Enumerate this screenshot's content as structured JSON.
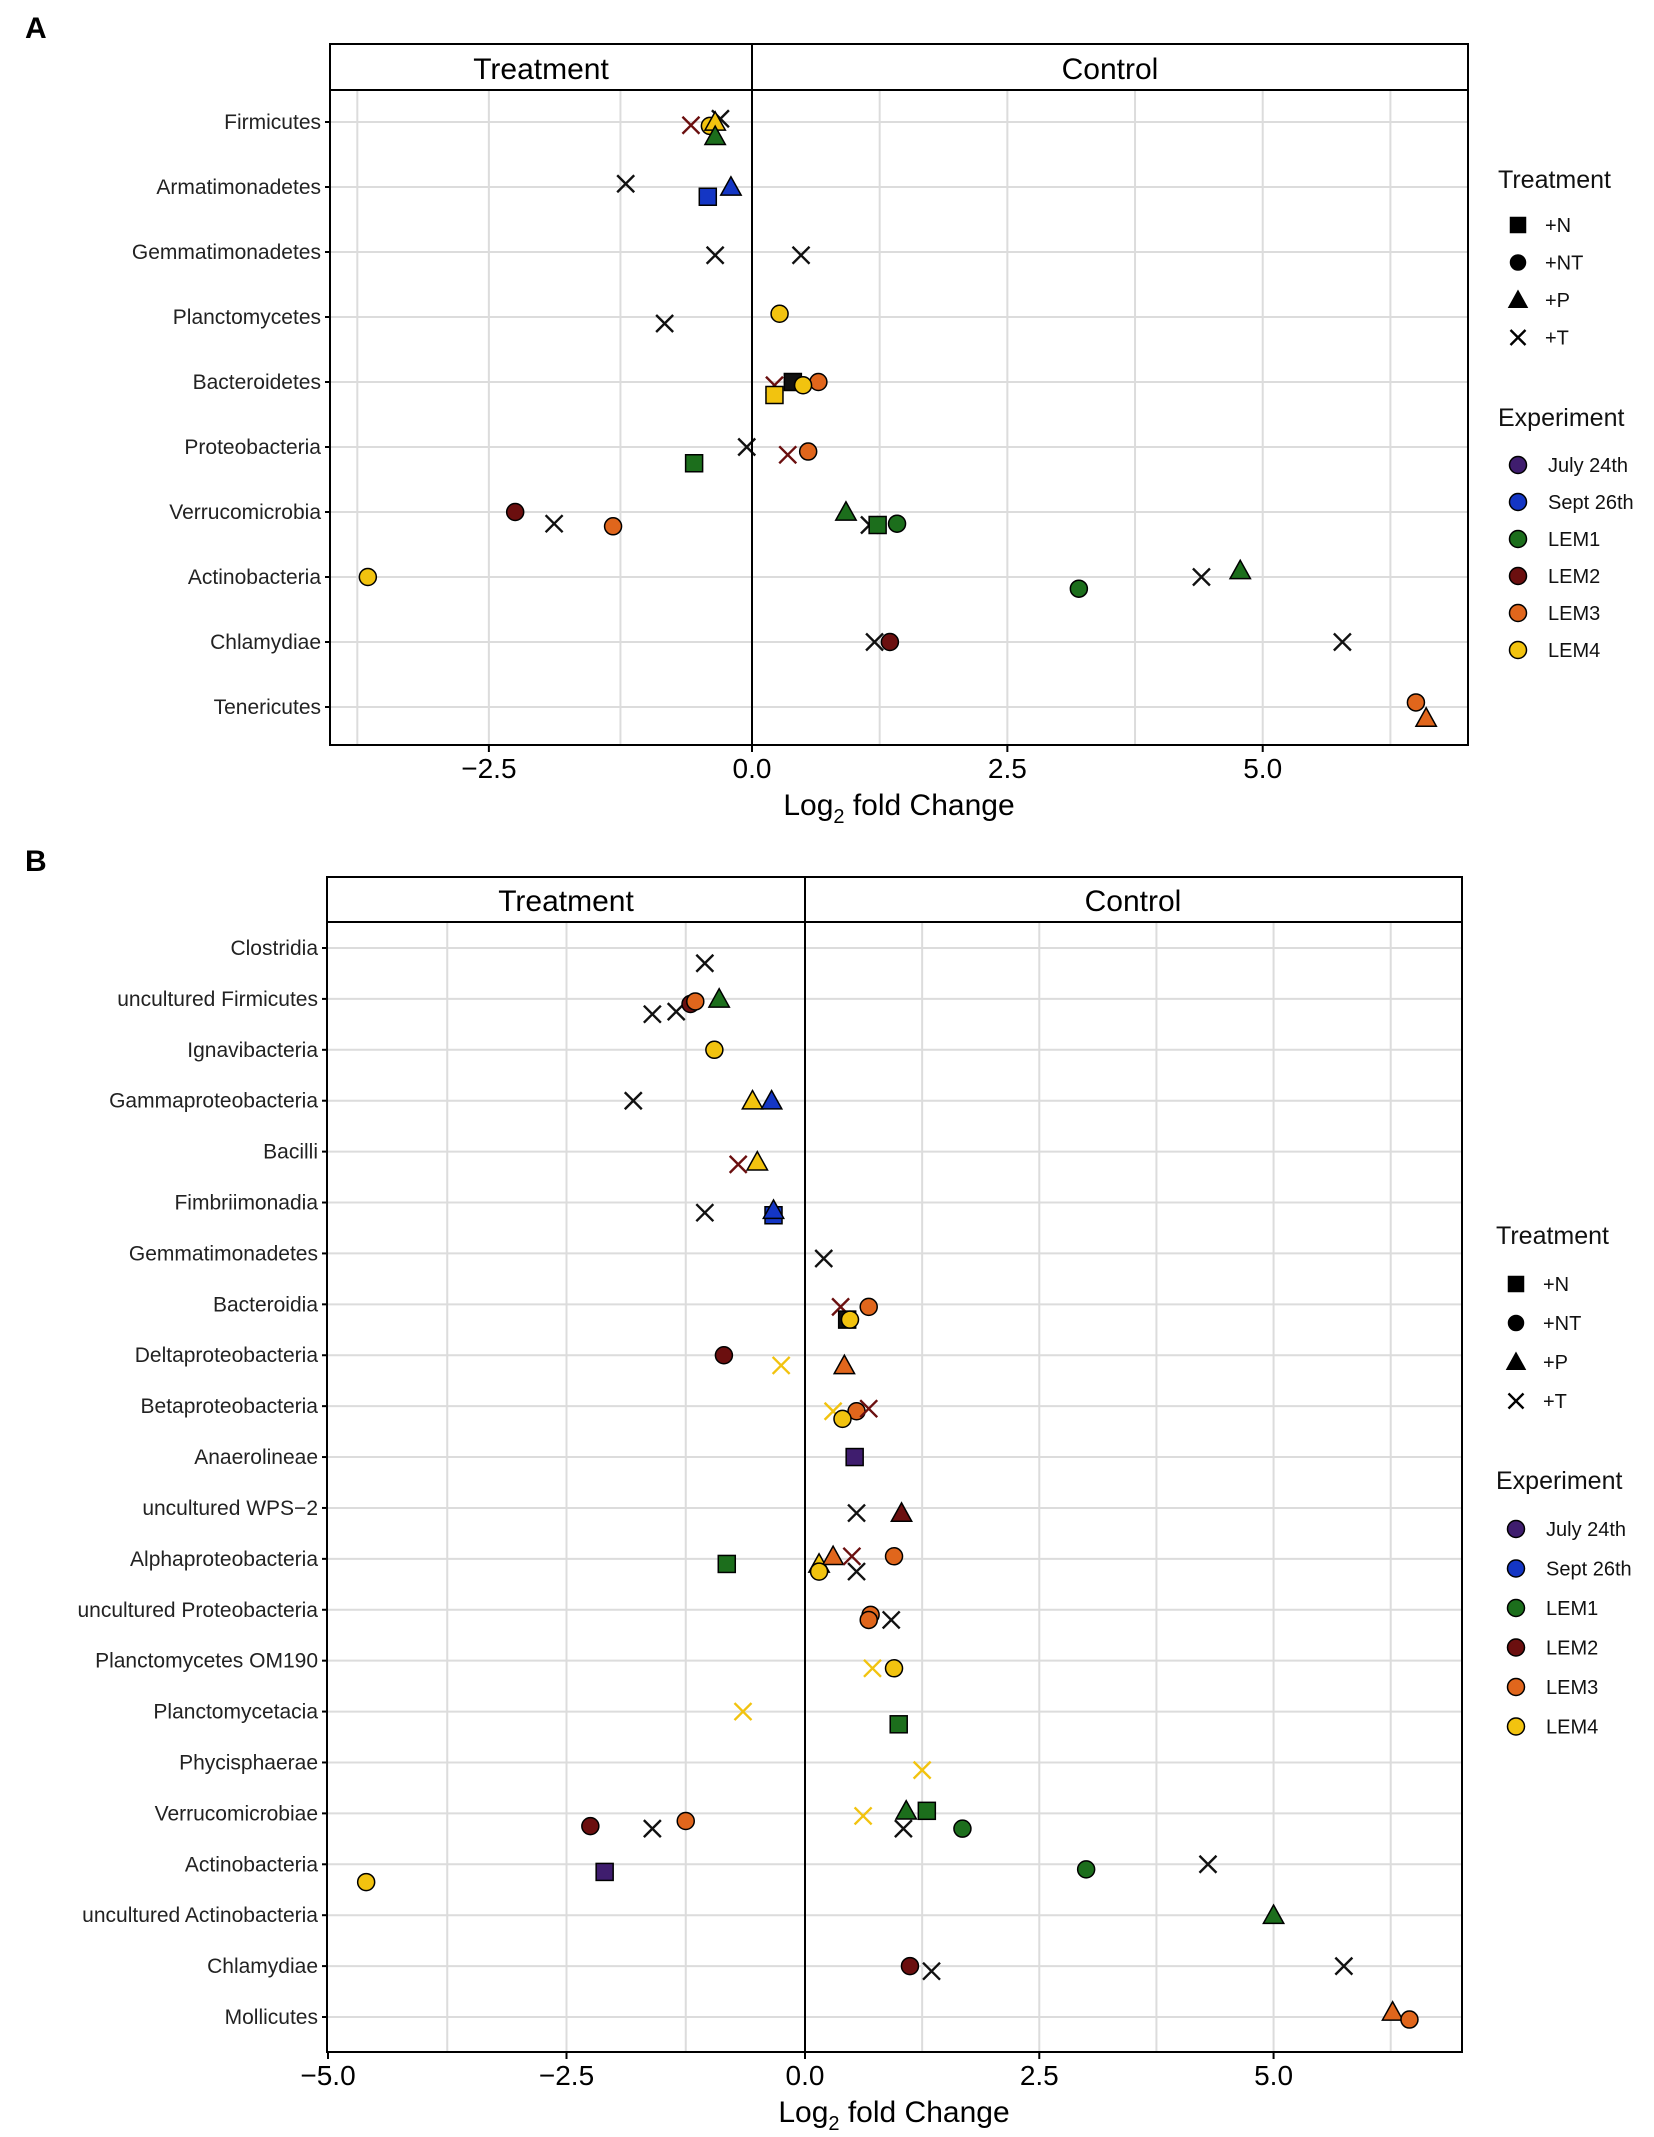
{
  "x_label_prefix": "Log",
  "x_label_sub": "2",
  "x_label_suffix": " fold Change",
  "legend": {
    "treatment_title": "Treatment",
    "treatments": [
      {
        "label": "+N",
        "shape": "square"
      },
      {
        "label": "+NT",
        "shape": "circle"
      },
      {
        "label": "+P",
        "shape": "triangle"
      },
      {
        "label": "+T",
        "shape": "cross"
      }
    ],
    "experiment_title": "Experiment",
    "experiments": [
      {
        "label": "July 24th",
        "color": "#3f1d6e"
      },
      {
        "label": "Sept 26th",
        "color": "#1436c4"
      },
      {
        "label": "LEM1",
        "color": "#1c6e1c"
      },
      {
        "label": "LEM2",
        "color": "#6b0f0f"
      },
      {
        "label": "LEM3",
        "color": "#e0661c"
      },
      {
        "label": "LEM4",
        "color": "#f2c30f"
      }
    ]
  },
  "chart_data": [
    {
      "panel_label": "A",
      "type": "scatter",
      "facets": [
        "Treatment",
        "Control"
      ],
      "xlim_treatment": [
        -4.0,
        0.0
      ],
      "xlim_control": [
        0.0,
        7.0
      ],
      "ticks": [
        "−2.5",
        "0.0",
        "2.5",
        "5.0"
      ],
      "tick_values": [
        -2.5,
        0.0,
        2.5,
        5.0
      ],
      "categories": [
        "Firmicutes",
        "Armatimonadetes",
        "Gemmatimonadetes",
        "Planctomycetes",
        "Bacteroidetes",
        "Proteobacteria",
        "Verrucomicrobia",
        "Actinobacteria",
        "Chlamydiae",
        "Tenericutes"
      ],
      "points": [
        {
          "cat": 0,
          "side": "T",
          "x": -0.3,
          "shape": "cross",
          "exp": "black",
          "dy": -0.05
        },
        {
          "cat": 0,
          "side": "T",
          "x": -0.58,
          "shape": "cross",
          "exp": "LEM2",
          "dy": 0.05
        },
        {
          "cat": 0,
          "side": "T",
          "x": -0.4,
          "shape": "circle",
          "exp": "LEM4",
          "dy": 0.06
        },
        {
          "cat": 0,
          "side": "T",
          "x": -0.35,
          "shape": "triangle",
          "exp": "LEM4",
          "dy": 0.0
        },
        {
          "cat": 0,
          "side": "T",
          "x": -0.35,
          "shape": "triangle",
          "exp": "LEM1",
          "dy": 0.22
        },
        {
          "cat": 1,
          "side": "T",
          "x": -1.2,
          "shape": "cross",
          "exp": "black",
          "dy": -0.05
        },
        {
          "cat": 1,
          "side": "T",
          "x": -0.42,
          "shape": "square",
          "exp": "Sept 26th",
          "dy": 0.15
        },
        {
          "cat": 1,
          "side": "T",
          "x": -0.2,
          "shape": "triangle",
          "exp": "Sept 26th",
          "dy": 0.0
        },
        {
          "cat": 2,
          "side": "T",
          "x": -0.35,
          "shape": "cross",
          "exp": "black",
          "dy": 0.05
        },
        {
          "cat": 2,
          "side": "C",
          "x": 0.48,
          "shape": "cross",
          "exp": "black",
          "dy": 0.05
        },
        {
          "cat": 3,
          "side": "T",
          "x": -0.83,
          "shape": "cross",
          "exp": "black",
          "dy": 0.1
        },
        {
          "cat": 3,
          "side": "C",
          "x": 0.27,
          "shape": "circle",
          "exp": "LEM4",
          "dy": -0.05
        },
        {
          "cat": 4,
          "side": "C",
          "x": 0.4,
          "shape": "square",
          "exp": "black",
          "dy": 0.0
        },
        {
          "cat": 4,
          "side": "C",
          "x": 0.22,
          "shape": "cross",
          "exp": "LEM2",
          "dy": 0.05
        },
        {
          "cat": 4,
          "side": "C",
          "x": 0.65,
          "shape": "circle",
          "exp": "LEM3",
          "dy": 0.0
        },
        {
          "cat": 4,
          "side": "C",
          "x": 0.5,
          "shape": "circle",
          "exp": "LEM4",
          "dy": 0.05
        },
        {
          "cat": 4,
          "side": "C",
          "x": 0.22,
          "shape": "square",
          "exp": "LEM4",
          "dy": 0.2
        },
        {
          "cat": 5,
          "side": "T",
          "x": -0.05,
          "shape": "cross",
          "exp": "black",
          "dy": 0.0
        },
        {
          "cat": 5,
          "side": "T",
          "x": -0.55,
          "shape": "square",
          "exp": "LEM1",
          "dy": 0.25
        },
        {
          "cat": 5,
          "side": "C",
          "x": 0.35,
          "shape": "cross",
          "exp": "LEM2",
          "dy": 0.12
        },
        {
          "cat": 5,
          "side": "C",
          "x": 0.55,
          "shape": "circle",
          "exp": "LEM3",
          "dy": 0.07
        },
        {
          "cat": 6,
          "side": "T",
          "x": -2.25,
          "shape": "circle",
          "exp": "LEM2",
          "dy": 0.0
        },
        {
          "cat": 6,
          "side": "T",
          "x": -1.88,
          "shape": "cross",
          "exp": "black",
          "dy": 0.18
        },
        {
          "cat": 6,
          "side": "T",
          "x": -1.32,
          "shape": "circle",
          "exp": "LEM3",
          "dy": 0.22
        },
        {
          "cat": 6,
          "side": "C",
          "x": 0.92,
          "shape": "triangle",
          "exp": "LEM1",
          "dy": 0.0
        },
        {
          "cat": 6,
          "side": "C",
          "x": 1.15,
          "shape": "cross",
          "exp": "black",
          "dy": 0.2
        },
        {
          "cat": 6,
          "side": "C",
          "x": 1.23,
          "shape": "square",
          "exp": "LEM1",
          "dy": 0.2
        },
        {
          "cat": 6,
          "side": "C",
          "x": 1.42,
          "shape": "circle",
          "exp": "LEM1",
          "dy": 0.18
        },
        {
          "cat": 7,
          "side": "T",
          "x": -3.65,
          "shape": "circle",
          "exp": "LEM4",
          "dy": 0.0
        },
        {
          "cat": 7,
          "side": "C",
          "x": 3.2,
          "shape": "circle",
          "exp": "LEM1",
          "dy": 0.18
        },
        {
          "cat": 7,
          "side": "C",
          "x": 4.4,
          "shape": "cross",
          "exp": "black",
          "dy": 0.0
        },
        {
          "cat": 7,
          "side": "C",
          "x": 4.78,
          "shape": "triangle",
          "exp": "LEM1",
          "dy": -0.1
        },
        {
          "cat": 8,
          "side": "C",
          "x": 1.2,
          "shape": "cross",
          "exp": "black",
          "dy": 0.0
        },
        {
          "cat": 8,
          "side": "C",
          "x": 1.35,
          "shape": "circle",
          "exp": "LEM2",
          "dy": 0.0
        },
        {
          "cat": 8,
          "side": "C",
          "x": 5.78,
          "shape": "cross",
          "exp": "black",
          "dy": 0.0
        },
        {
          "cat": 9,
          "side": "C",
          "x": 6.5,
          "shape": "circle",
          "exp": "LEM3",
          "dy": -0.07
        },
        {
          "cat": 9,
          "side": "C",
          "x": 6.6,
          "shape": "triangle",
          "exp": "LEM3",
          "dy": 0.17
        }
      ]
    },
    {
      "panel_label": "B",
      "type": "scatter",
      "facets": [
        "Treatment",
        "Control"
      ],
      "xlim_treatment": [
        -5.0,
        0.0
      ],
      "xlim_control": [
        0.0,
        7.0
      ],
      "ticks": [
        "−5.0",
        "−2.5",
        "0.0",
        "2.5",
        "5.0"
      ],
      "tick_values": [
        -5.0,
        -2.5,
        0.0,
        2.5,
        5.0
      ],
      "categories": [
        "Clostridia",
        "uncultured Firmicutes",
        "Ignavibacteria",
        "Gammaproteobacteria",
        "Bacilli",
        "Fimbriimonadia",
        "Gemmatimonadetes",
        "Bacteroidia",
        "Deltaproteobacteria",
        "Betaproteobacteria",
        "Anaerolineae",
        "uncultured WPS−2",
        "Alphaproteobacteria",
        "uncultured Proteobacteria",
        "Planctomycetes OM190",
        "Planctomycetacia",
        "Phycisphaerae",
        "Verrucomicrobiae",
        "Actinobacteria",
        "uncultured Actinobacteria",
        "Chlamydiae",
        "Mollicutes"
      ],
      "points": [
        {
          "cat": 0,
          "side": "T",
          "x": -1.05,
          "shape": "cross",
          "exp": "black",
          "dy": 0.3
        },
        {
          "cat": 1,
          "side": "T",
          "x": -1.6,
          "shape": "cross",
          "exp": "black",
          "dy": 0.3
        },
        {
          "cat": 1,
          "side": "T",
          "x": -1.35,
          "shape": "cross",
          "exp": "black",
          "dy": 0.25
        },
        {
          "cat": 1,
          "side": "T",
          "x": -1.2,
          "shape": "circle",
          "exp": "LEM2",
          "dy": 0.1
        },
        {
          "cat": 1,
          "side": "T",
          "x": -1.15,
          "shape": "circle",
          "exp": "LEM3",
          "dy": 0.05
        },
        {
          "cat": 1,
          "side": "T",
          "x": -0.9,
          "shape": "triangle",
          "exp": "LEM1",
          "dy": 0.0
        },
        {
          "cat": 2,
          "side": "T",
          "x": -0.95,
          "shape": "circle",
          "exp": "LEM4",
          "dy": 0.0
        },
        {
          "cat": 3,
          "side": "T",
          "x": -1.8,
          "shape": "cross",
          "exp": "black",
          "dy": 0.0
        },
        {
          "cat": 3,
          "side": "T",
          "x": -0.55,
          "shape": "triangle",
          "exp": "LEM4",
          "dy": 0.0
        },
        {
          "cat": 3,
          "side": "T",
          "x": -0.35,
          "shape": "triangle",
          "exp": "Sept 26th",
          "dy": 0.0
        },
        {
          "cat": 4,
          "side": "T",
          "x": -0.7,
          "shape": "cross",
          "exp": "LEM2",
          "dy": 0.25
        },
        {
          "cat": 4,
          "side": "T",
          "x": -0.5,
          "shape": "triangle",
          "exp": "LEM4",
          "dy": 0.2
        },
        {
          "cat": 5,
          "side": "T",
          "x": -1.05,
          "shape": "cross",
          "exp": "black",
          "dy": 0.2
        },
        {
          "cat": 5,
          "side": "T",
          "x": -0.33,
          "shape": "square",
          "exp": "Sept 26th",
          "dy": 0.25
        },
        {
          "cat": 5,
          "side": "T",
          "x": -0.33,
          "shape": "triangle",
          "exp": "Sept 26th",
          "dy": 0.15
        },
        {
          "cat": 6,
          "side": "C",
          "x": 0.2,
          "shape": "cross",
          "exp": "black",
          "dy": 0.1
        },
        {
          "cat": 7,
          "side": "C",
          "x": 0.38,
          "shape": "cross",
          "exp": "LEM2",
          "dy": 0.05
        },
        {
          "cat": 7,
          "side": "C",
          "x": 0.68,
          "shape": "circle",
          "exp": "LEM3",
          "dy": 0.05
        },
        {
          "cat": 7,
          "side": "C",
          "x": 0.45,
          "shape": "square",
          "exp": "black",
          "dy": 0.3
        },
        {
          "cat": 7,
          "side": "C",
          "x": 0.48,
          "shape": "circle",
          "exp": "LEM4",
          "dy": 0.3
        },
        {
          "cat": 8,
          "side": "T",
          "x": -0.85,
          "shape": "circle",
          "exp": "LEM2",
          "dy": 0.0
        },
        {
          "cat": 8,
          "side": "T",
          "x": -0.25,
          "shape": "cross",
          "exp": "LEM4",
          "dy": 0.2
        },
        {
          "cat": 8,
          "side": "C",
          "x": 0.42,
          "shape": "triangle",
          "exp": "LEM3",
          "dy": 0.2
        },
        {
          "cat": 9,
          "side": "C",
          "x": 0.3,
          "shape": "cross",
          "exp": "LEM4",
          "dy": 0.1
        },
        {
          "cat": 9,
          "side": "C",
          "x": 0.55,
          "shape": "circle",
          "exp": "LEM3",
          "dy": 0.1
        },
        {
          "cat": 9,
          "side": "C",
          "x": 0.68,
          "shape": "cross",
          "exp": "LEM2",
          "dy": 0.05
        },
        {
          "cat": 9,
          "side": "C",
          "x": 0.4,
          "shape": "circle",
          "exp": "LEM4",
          "dy": 0.25
        },
        {
          "cat": 10,
          "side": "C",
          "x": 0.53,
          "shape": "square",
          "exp": "July 24th",
          "dy": 0.0
        },
        {
          "cat": 11,
          "side": "C",
          "x": 0.55,
          "shape": "cross",
          "exp": "black",
          "dy": 0.1
        },
        {
          "cat": 11,
          "side": "C",
          "x": 1.03,
          "shape": "triangle",
          "exp": "LEM2",
          "dy": 0.1
        },
        {
          "cat": 12,
          "side": "T",
          "x": -0.82,
          "shape": "square",
          "exp": "LEM1",
          "dy": 0.1
        },
        {
          "cat": 12,
          "side": "C",
          "x": 0.15,
          "shape": "triangle",
          "exp": "LEM4",
          "dy": 0.1
        },
        {
          "cat": 12,
          "side": "C",
          "x": 0.3,
          "shape": "triangle",
          "exp": "LEM3",
          "dy": -0.05
        },
        {
          "cat": 12,
          "side": "C",
          "x": 0.5,
          "shape": "cross",
          "exp": "LEM2",
          "dy": -0.05
        },
        {
          "cat": 12,
          "side": "C",
          "x": 0.95,
          "shape": "circle",
          "exp": "LEM3",
          "dy": -0.05
        },
        {
          "cat": 12,
          "side": "C",
          "x": 0.55,
          "shape": "cross",
          "exp": "black",
          "dy": 0.25
        },
        {
          "cat": 12,
          "side": "C",
          "x": 0.15,
          "shape": "circle",
          "exp": "LEM4",
          "dy": 0.25
        },
        {
          "cat": 13,
          "side": "C",
          "x": 0.7,
          "shape": "circle",
          "exp": "LEM3",
          "dy": 0.1
        },
        {
          "cat": 13,
          "side": "C",
          "x": 0.68,
          "shape": "circle",
          "exp": "LEM3",
          "dy": 0.2
        },
        {
          "cat": 13,
          "side": "C",
          "x": 0.92,
          "shape": "cross",
          "exp": "black",
          "dy": 0.2
        },
        {
          "cat": 14,
          "side": "C",
          "x": 0.72,
          "shape": "cross",
          "exp": "LEM4",
          "dy": 0.15
        },
        {
          "cat": 14,
          "side": "C",
          "x": 0.95,
          "shape": "circle",
          "exp": "LEM4",
          "dy": 0.15
        },
        {
          "cat": 15,
          "side": "T",
          "x": -0.65,
          "shape": "cross",
          "exp": "LEM4",
          "dy": 0.0
        },
        {
          "cat": 15,
          "side": "C",
          "x": 1.0,
          "shape": "square",
          "exp": "LEM1",
          "dy": 0.25
        },
        {
          "cat": 16,
          "side": "C",
          "x": 1.25,
          "shape": "cross",
          "exp": "LEM4",
          "dy": 0.15
        },
        {
          "cat": 17,
          "side": "T",
          "x": -2.25,
          "shape": "circle",
          "exp": "LEM2",
          "dy": 0.25
        },
        {
          "cat": 17,
          "side": "T",
          "x": -1.6,
          "shape": "cross",
          "exp": "black",
          "dy": 0.3
        },
        {
          "cat": 17,
          "side": "T",
          "x": -1.25,
          "shape": "circle",
          "exp": "LEM3",
          "dy": 0.15
        },
        {
          "cat": 17,
          "side": "C",
          "x": 0.62,
          "shape": "cross",
          "exp": "LEM4",
          "dy": 0.05
        },
        {
          "cat": 17,
          "side": "C",
          "x": 1.08,
          "shape": "triangle",
          "exp": "LEM1",
          "dy": -0.05
        },
        {
          "cat": 17,
          "side": "C",
          "x": 1.3,
          "shape": "square",
          "exp": "LEM1",
          "dy": -0.05
        },
        {
          "cat": 17,
          "side": "C",
          "x": 1.05,
          "shape": "cross",
          "exp": "black",
          "dy": 0.3
        },
        {
          "cat": 17,
          "side": "C",
          "x": 1.68,
          "shape": "circle",
          "exp": "LEM1",
          "dy": 0.3
        },
        {
          "cat": 18,
          "side": "T",
          "x": -2.1,
          "shape": "square",
          "exp": "July 24th",
          "dy": 0.15
        },
        {
          "cat": 18,
          "side": "T",
          "x": -4.6,
          "shape": "circle",
          "exp": "LEM4",
          "dy": 0.35
        },
        {
          "cat": 18,
          "side": "C",
          "x": 3.0,
          "shape": "circle",
          "exp": "LEM1",
          "dy": 0.1
        },
        {
          "cat": 18,
          "side": "C",
          "x": 4.3,
          "shape": "cross",
          "exp": "black",
          "dy": 0.0
        },
        {
          "cat": 19,
          "side": "C",
          "x": 5.0,
          "shape": "triangle",
          "exp": "LEM1",
          "dy": 0.0
        },
        {
          "cat": 20,
          "side": "C",
          "x": 1.12,
          "shape": "circle",
          "exp": "LEM2",
          "dy": 0.0
        },
        {
          "cat": 20,
          "side": "C",
          "x": 1.35,
          "shape": "cross",
          "exp": "black",
          "dy": 0.1
        },
        {
          "cat": 20,
          "side": "C",
          "x": 5.75,
          "shape": "cross",
          "exp": "black",
          "dy": 0.0
        },
        {
          "cat": 21,
          "side": "C",
          "x": 6.27,
          "shape": "triangle",
          "exp": "LEM3",
          "dy": -0.1
        },
        {
          "cat": 21,
          "side": "C",
          "x": 6.45,
          "shape": "circle",
          "exp": "LEM3",
          "dy": 0.05
        }
      ]
    }
  ]
}
